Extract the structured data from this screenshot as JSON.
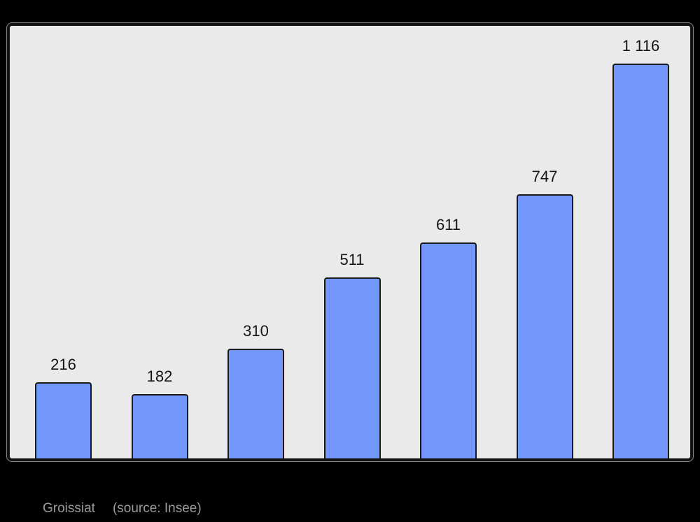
{
  "page": {
    "background": "#000000"
  },
  "frame": {
    "background": "#EAEAEA",
    "border_color": "#121212"
  },
  "bars": {
    "fill": "#7397FA",
    "border": "#1A1A1A"
  },
  "caption": {
    "title": "Groissiat",
    "source": "(source: Insee)",
    "color": "#9B9B9B"
  },
  "chart_data": {
    "type": "bar",
    "values": [
      216,
      182,
      310,
      511,
      611,
      747,
      1116
    ],
    "value_labels": [
      "216",
      "182",
      "310",
      "511",
      "611",
      "747",
      "1 116"
    ],
    "title": "",
    "xlabel": "",
    "ylabel": "",
    "ylim": [
      0,
      1223
    ],
    "grid": false,
    "legend": null,
    "bar_color": "#7397FA",
    "background": "#EAEAEA",
    "caption": "Groissiat (source: Insee)"
  }
}
